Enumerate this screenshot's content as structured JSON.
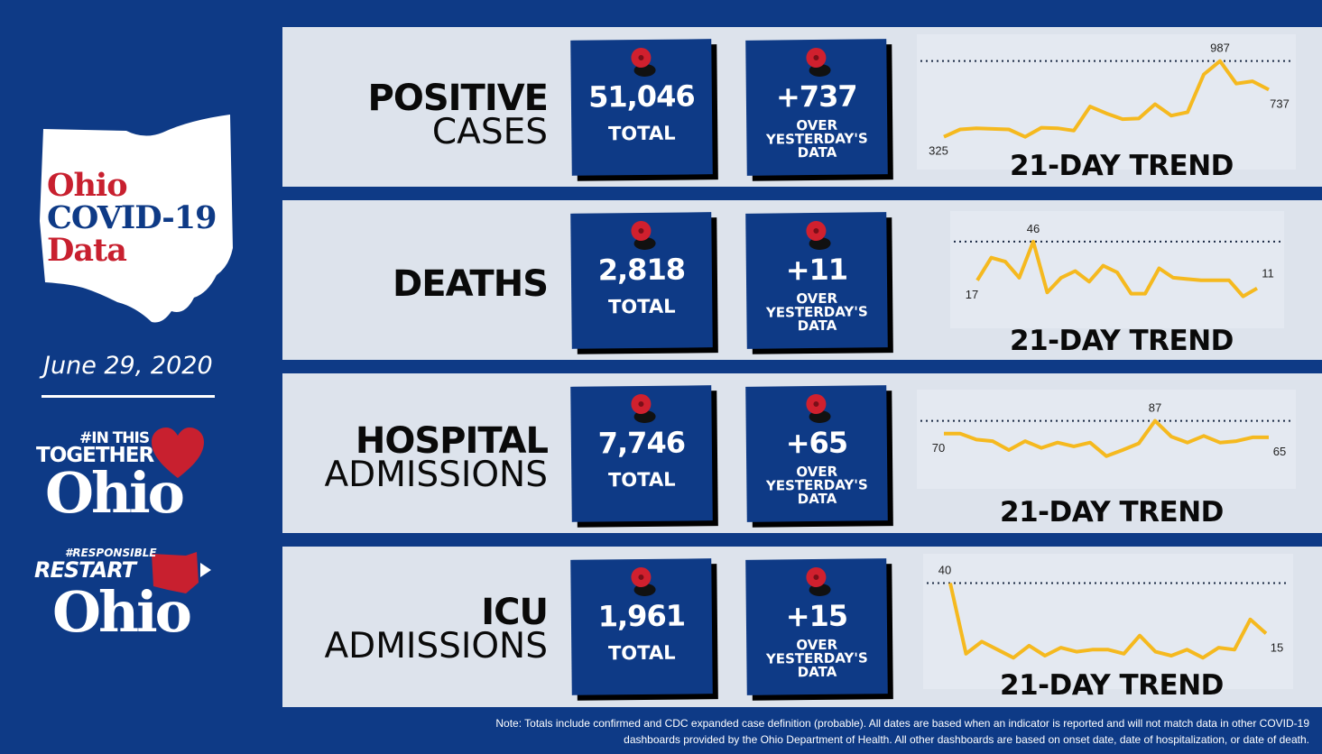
{
  "sidebar": {
    "title_line1": "Ohio",
    "title_line2": "COVID-19",
    "title_line3": "Data",
    "date": "June 29, 2020",
    "logo1_small": "#IN THIS",
    "logo1_mid": "TOGETHER",
    "logo1_big": "Ohio",
    "logo2_small": "#RESPONSIBLE",
    "logo2_mid": "RESTART",
    "logo2_big": "Ohio"
  },
  "rows": [
    {
      "label1": "POSITIVE",
      "label2": "CASES",
      "total": "51,046",
      "total_label": "TOTAL",
      "change": "+737",
      "change_l1": "OVER",
      "change_l2": "YESTERDAY'S",
      "change_l3": "DATA",
      "trend_title": "21-DAY TREND"
    },
    {
      "label1": "DEATHS",
      "label2": "",
      "total": "2,818",
      "total_label": "TOTAL",
      "change": "+11",
      "change_l1": "OVER",
      "change_l2": "YESTERDAY'S",
      "change_l3": "DATA",
      "trend_title": "21-DAY TREND"
    },
    {
      "label1": "HOSPITAL",
      "label2": "ADMISSIONS",
      "total": "7,746",
      "total_label": "TOTAL",
      "change": "+65",
      "change_l1": "OVER",
      "change_l2": "YESTERDAY'S",
      "change_l3": "DATA",
      "trend_title": "21-DAY TREND"
    },
    {
      "label1": "ICU",
      "label2": "ADMISSIONS",
      "total": "1,961",
      "total_label": "TOTAL",
      "change": "+15",
      "change_l1": "OVER",
      "change_l2": "YESTERDAY'S",
      "change_l3": "DATA",
      "trend_title": "21-DAY TREND"
    }
  ],
  "note_line1": "Note: Totals include confirmed and CDC expanded case definition (probable). All dates are based when an indicator is reported and will not match data in other COVID-19",
  "note_line2": "dashboards provided by the Ohio Department of Health.  All other dashboards are based on onset date, date of hospitalization, or date of death.",
  "colors": {
    "navy": "#0e3a86",
    "panel": "#dde3ec",
    "trend_line": "#f5b91f",
    "red": "#c8202f"
  },
  "chart_data": [
    {
      "type": "line",
      "name": "positive-cases-trend",
      "x": [
        1,
        2,
        3,
        4,
        5,
        6,
        7,
        8,
        9,
        10,
        11,
        12,
        13,
        14,
        15,
        16,
        17,
        18,
        19,
        20,
        21
      ],
      "values": [
        325,
        390,
        400,
        395,
        390,
        325,
        405,
        400,
        380,
        590,
        530,
        480,
        485,
        610,
        510,
        540,
        870,
        987,
        790,
        810,
        737
      ],
      "ylim": [
        260,
        1000
      ],
      "labels": {
        "first": "325",
        "max": "987",
        "last": "737"
      },
      "reference_line": "max"
    },
    {
      "type": "line",
      "name": "deaths-trend",
      "x": [
        1,
        2,
        3,
        4,
        5,
        6,
        7,
        8,
        9,
        10,
        11,
        12,
        13,
        14,
        15,
        16,
        17,
        18,
        19,
        20,
        21
      ],
      "values": [
        17,
        34,
        31,
        19,
        46,
        8,
        19,
        24,
        16,
        28,
        23,
        7,
        7,
        26,
        19,
        18,
        17,
        17,
        17,
        5,
        11
      ],
      "ylim": [
        0,
        50
      ],
      "labels": {
        "first": "17",
        "max": "46",
        "last": "11"
      },
      "reference_line": "max"
    },
    {
      "type": "line",
      "name": "hospital-admissions-trend",
      "x": [
        1,
        2,
        3,
        4,
        5,
        6,
        7,
        8,
        9,
        10,
        11,
        12,
        13,
        14,
        15,
        16,
        17,
        18,
        19,
        20,
        21
      ],
      "values": [
        70,
        70,
        62,
        60,
        48,
        60,
        51,
        58,
        53,
        58,
        40,
        48,
        57,
        87,
        66,
        58,
        67,
        58,
        60,
        65,
        65
      ],
      "ylim": [
        30,
        95
      ],
      "labels": {
        "first": "70",
        "max": "87",
        "last": "65"
      },
      "reference_line": "max"
    },
    {
      "type": "line",
      "name": "icu-admissions-trend",
      "x": [
        1,
        2,
        3,
        4,
        5,
        6,
        7,
        8,
        9,
        10,
        11,
        12,
        13,
        14,
        15,
        16,
        17,
        18,
        19,
        20,
        21
      ],
      "values": [
        40,
        5,
        11,
        7,
        3,
        9,
        4,
        8,
        6,
        7,
        7,
        5,
        14,
        6,
        4,
        7,
        3,
        8,
        7,
        22,
        15
      ],
      "ylim": [
        0,
        42
      ],
      "labels": {
        "first": "40",
        "max": "40",
        "last": "15"
      },
      "reference_line": "max"
    }
  ]
}
